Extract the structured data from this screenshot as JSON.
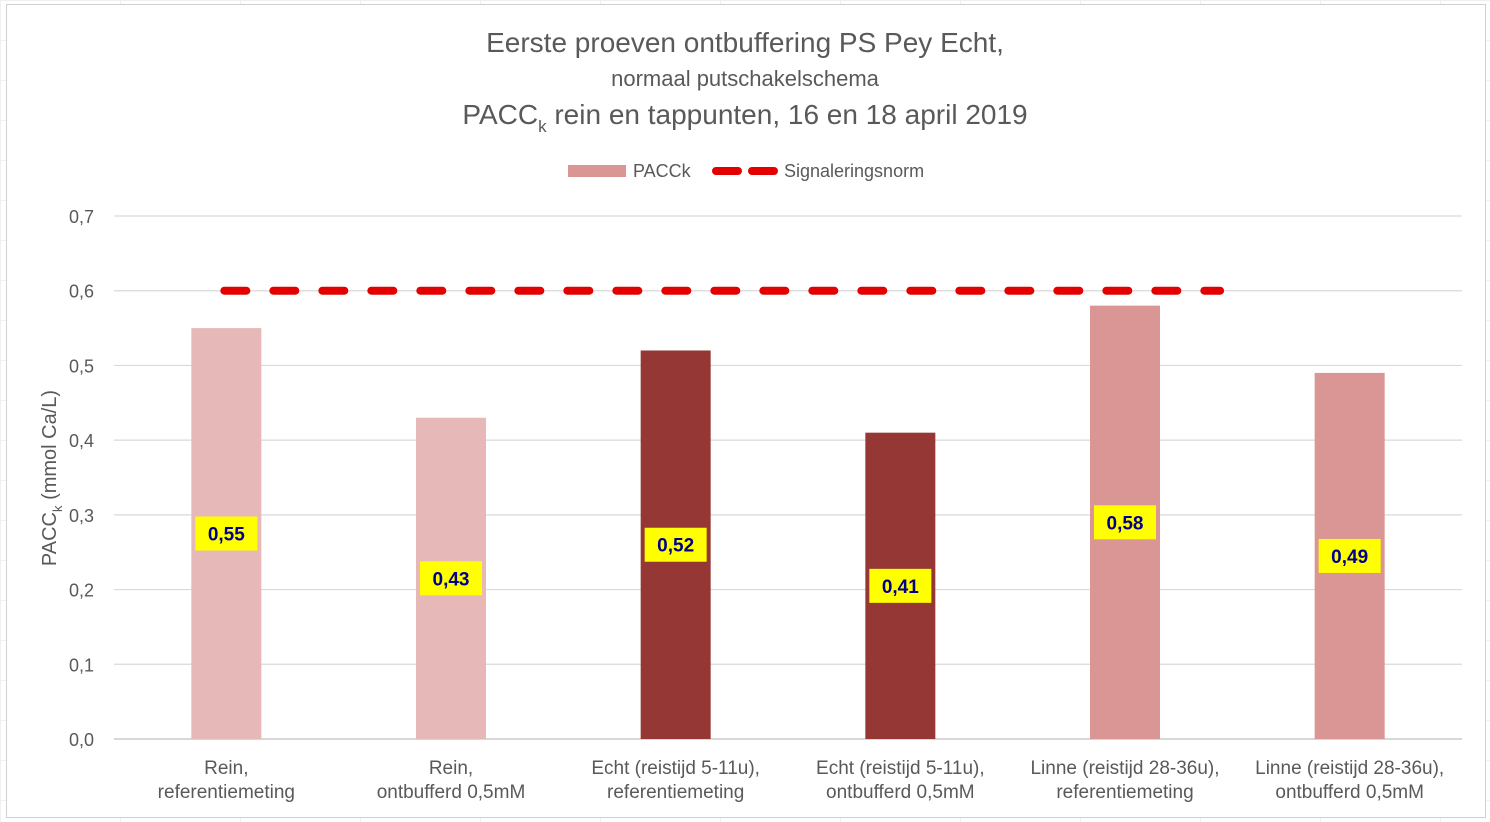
{
  "chart_data": {
    "type": "bar",
    "title": {
      "line1": "Eerste proeven ontbuffering PS Pey Echt,",
      "line2": "normaal putschakelschema",
      "line3_main": "PACC",
      "line3_sub": "k",
      "line3_rest": " rein en tappunten, 16 en 18 april 2019"
    },
    "ylabel": {
      "main": "PACC",
      "sub": "k",
      "rest": " (mmol Ca/L)"
    },
    "ylim": [
      0,
      0.7
    ],
    "yticks": [
      "0,0",
      "0,1",
      "0,2",
      "0,3",
      "0,4",
      "0,5",
      "0,6",
      "0,7"
    ],
    "categories": [
      [
        "Rein,",
        "referentiemeting"
      ],
      [
        "Rein,",
        "ontbufferd 0,5mM"
      ],
      [
        "Echt (reistijd 5-11u),",
        "referentiemeting"
      ],
      [
        "Echt (reistijd 5-11u),",
        "ontbufferd 0,5mM"
      ],
      [
        "Linne (reistijd 28-36u),",
        "referentiemeting"
      ],
      [
        "Linne (reistijd 28-36u),",
        "ontbufferd 0,5mM"
      ]
    ],
    "series": [
      {
        "name": "PACCk",
        "values": [
          0.55,
          0.43,
          0.52,
          0.41,
          0.58,
          0.49
        ],
        "labels": [
          "0,55",
          "0,43",
          "0,52",
          "0,41",
          "0,58",
          "0,49"
        ],
        "colors": [
          "#e6b9b8",
          "#e6b9b8",
          "#953735",
          "#953735",
          "#d99694",
          "#d99694"
        ],
        "legend_color": "#d99694"
      },
      {
        "name": "Signaleringsnorm",
        "type": "line",
        "style": "dashed",
        "value": 0.6,
        "color": "#e30000"
      }
    ],
    "legend_position": "top",
    "grid": true,
    "data_label_bg": "#ffff00",
    "data_label_color": "#00008b"
  }
}
